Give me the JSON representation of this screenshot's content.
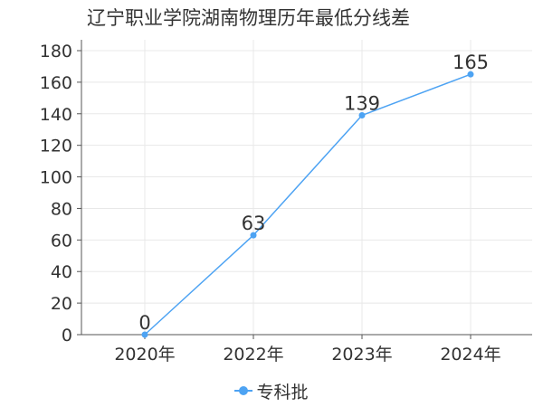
{
  "title": "辽宁职业学院湖南物理历年最低分线差",
  "colors": {
    "series": "#4da3f3",
    "axis": "#555555",
    "grid": "#e8e8e8",
    "text": "#333333"
  },
  "chart_data": {
    "type": "line",
    "title": "辽宁职业学院湖南物理历年最低分线差",
    "categories": [
      "2020年",
      "2022年",
      "2023年",
      "2024年"
    ],
    "series": [
      {
        "name": "专科批",
        "values": [
          0,
          63,
          139,
          165
        ]
      }
    ],
    "ylim": [
      0,
      180
    ],
    "yticks": [
      0,
      20,
      40,
      60,
      80,
      100,
      120,
      140,
      160,
      180
    ],
    "grid": true,
    "legend": "bottom-center",
    "data_labels": true
  }
}
